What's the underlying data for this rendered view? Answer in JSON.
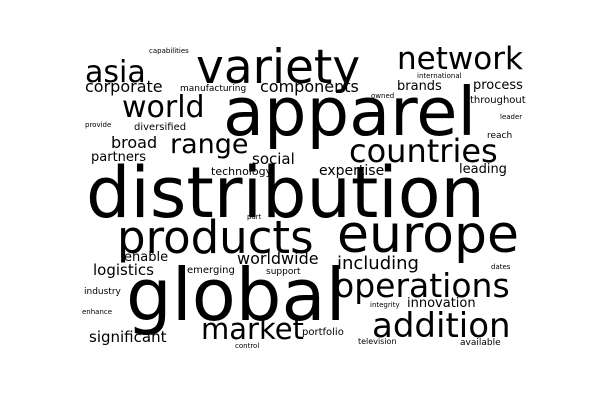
{
  "background_color": "#ffffff",
  "text_color": "#000000",
  "words": [
    "distribution",
    "apparel",
    "global",
    "europe",
    "products",
    "variety",
    "addition",
    "operations",
    "countries",
    "network",
    "world",
    "asia",
    "market",
    "range",
    "including",
    "worldwide",
    "broad",
    "components",
    "corporate",
    "significant",
    "social",
    "logistics",
    "expertise",
    "partners",
    "innovation",
    "leading",
    "process",
    "brands",
    "technology",
    "enable",
    "diversified",
    "throughout",
    "emerging",
    "portfolio",
    "manufacturing",
    "industry",
    "reach",
    "support",
    "available",
    "television",
    "capabilities",
    "international",
    "owned",
    "leader",
    "provide",
    "part",
    "dates",
    "integrity",
    "enhance",
    "control"
  ]
}
